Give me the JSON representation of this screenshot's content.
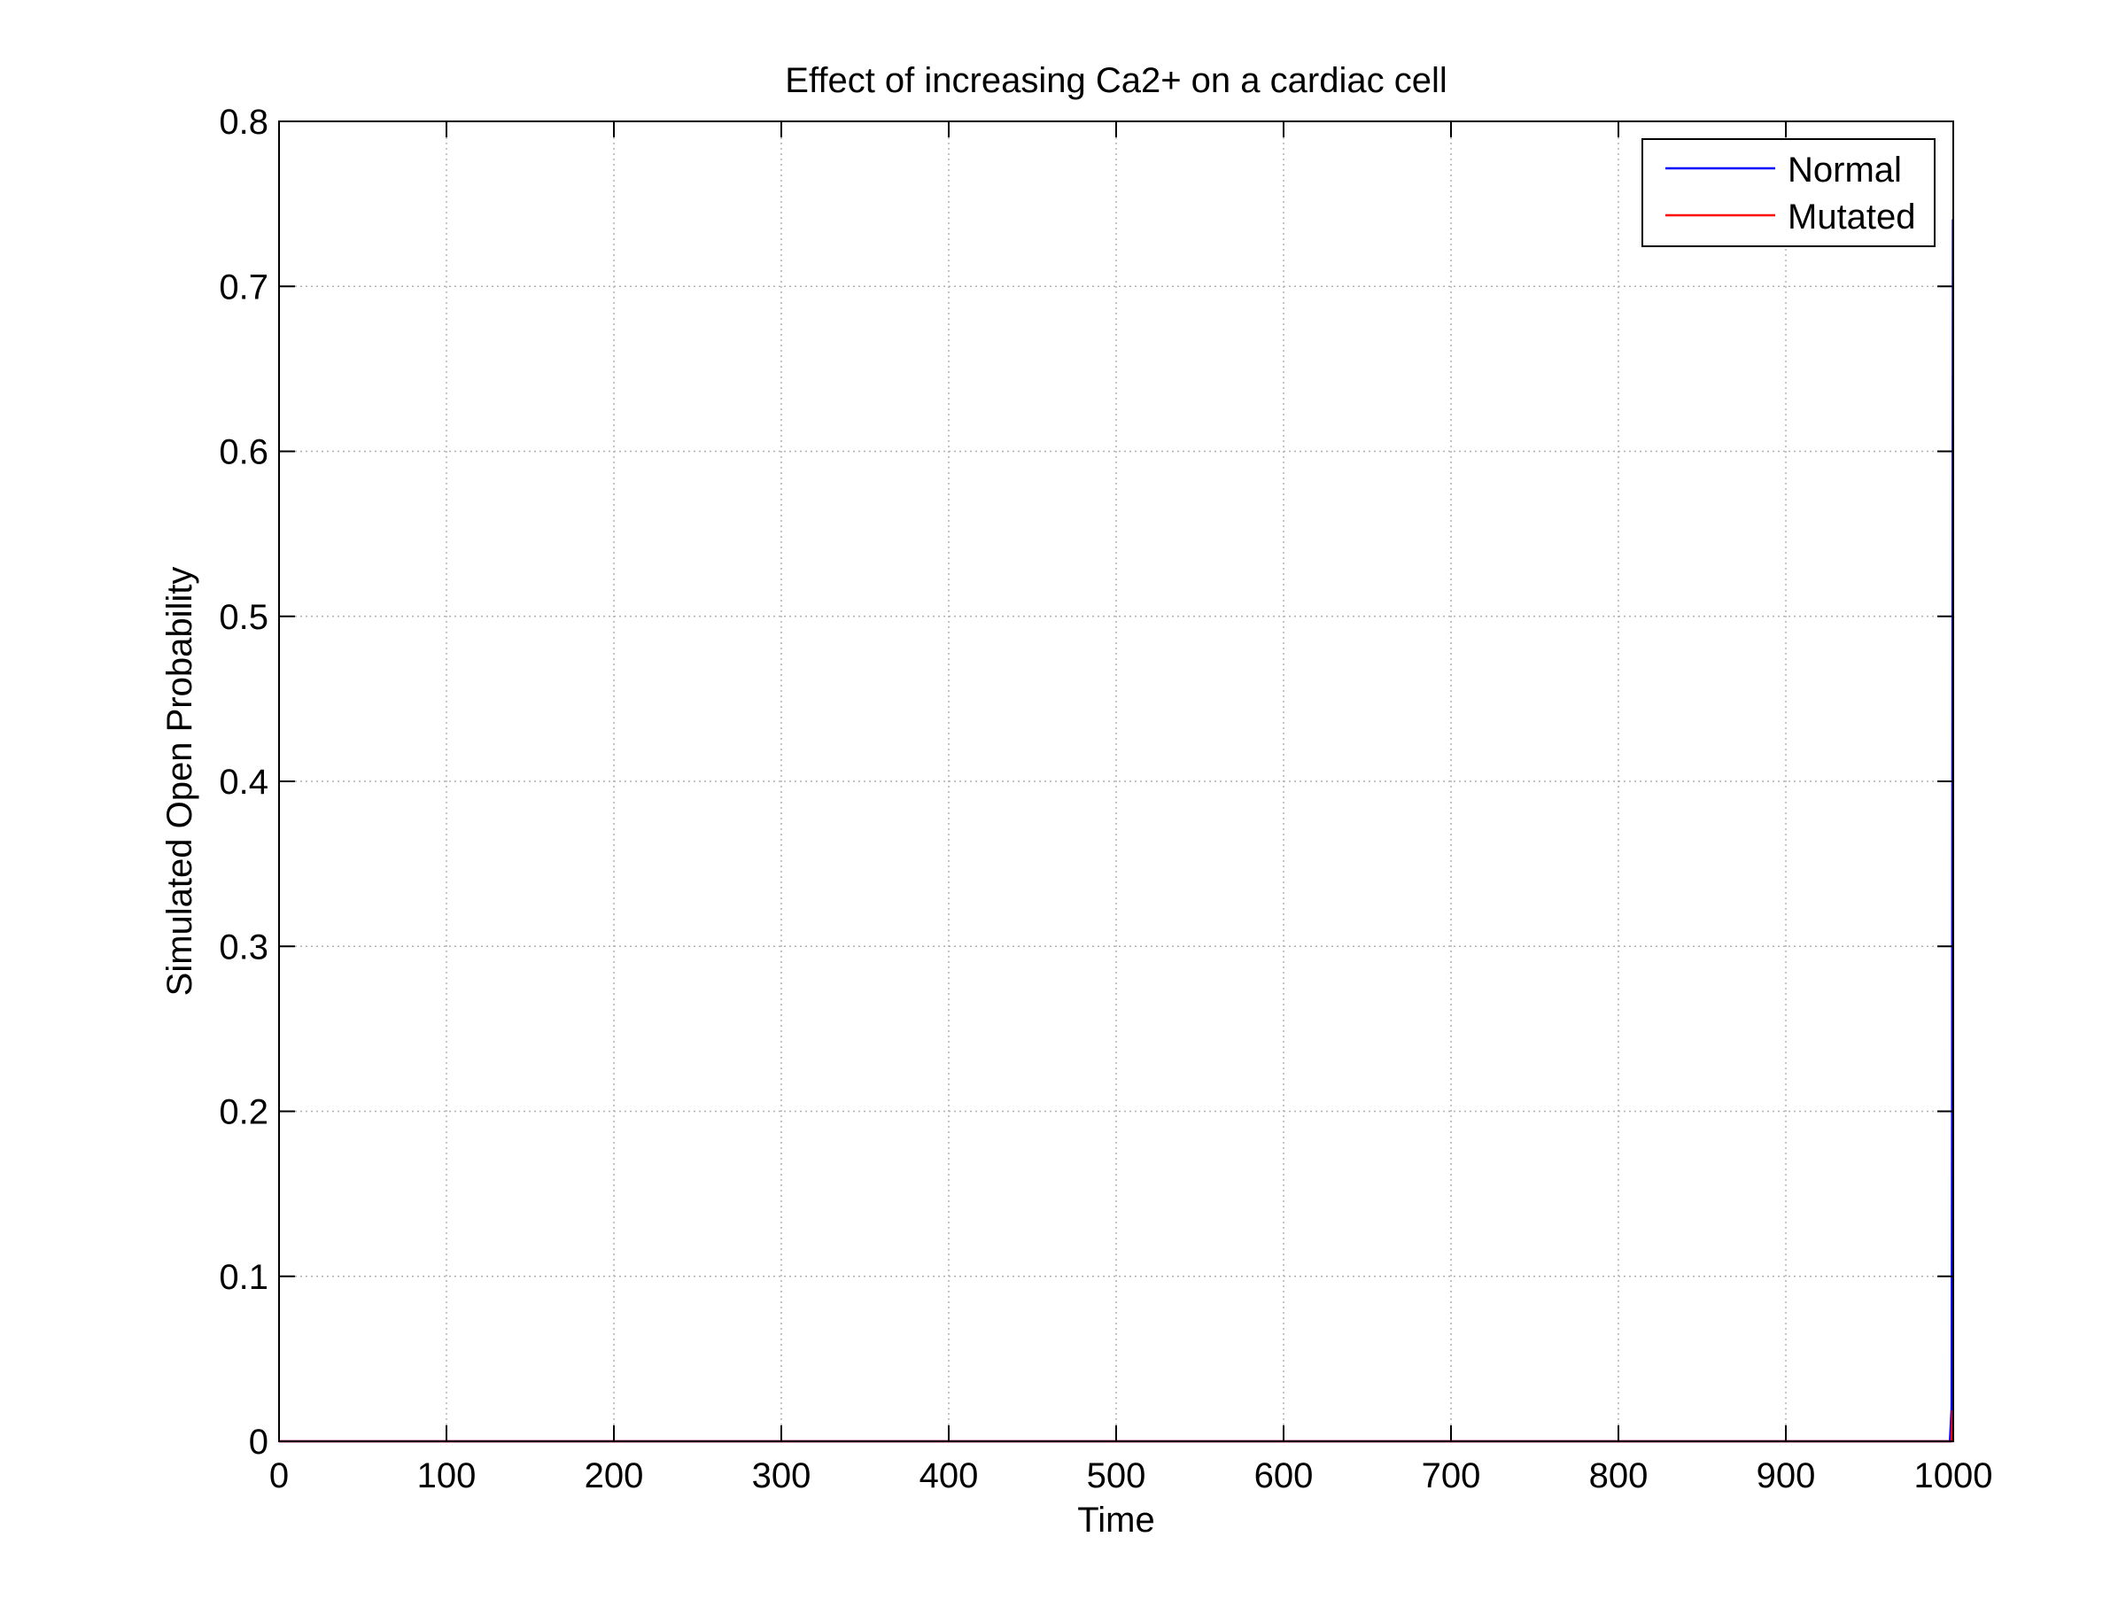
{
  "chart_data": {
    "type": "line",
    "title": "Effect of increasing Ca2+ on a cardiac cell",
    "xlabel": "Time",
    "ylabel": "Simulated Open Probability",
    "xlim": [
      0,
      1000
    ],
    "ylim": [
      0,
      0.8
    ],
    "xticks": [
      0,
      100,
      200,
      300,
      400,
      500,
      600,
      700,
      800,
      900,
      1000
    ],
    "xtick_labels": [
      "0",
      "100",
      "200",
      "300",
      "400",
      "500",
      "600",
      "700",
      "800",
      "900",
      "1000"
    ],
    "yticks": [
      0,
      0.1,
      0.2,
      0.3,
      0.4,
      0.5,
      0.6,
      0.7,
      0.8
    ],
    "ytick_labels": [
      "0",
      "0.1",
      "0.2",
      "0.3",
      "0.4",
      "0.5",
      "0.6",
      "0.7",
      "0.8"
    ],
    "grid": true,
    "legend_position": "top-right",
    "series": [
      {
        "name": "Normal",
        "color": "#0000ff",
        "x": [
          0,
          998,
          999,
          999.3,
          999.6,
          999.8,
          1000
        ],
        "y": [
          0,
          0,
          0.02,
          0.2,
          0.55,
          0.74,
          0.74
        ]
      },
      {
        "name": "Mutated",
        "color": "#ff0000",
        "x": [
          0,
          999,
          999.5,
          1000
        ],
        "y": [
          0,
          0,
          0.018,
          0.018
        ]
      }
    ]
  }
}
